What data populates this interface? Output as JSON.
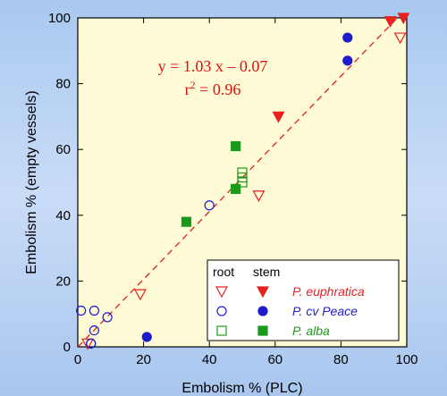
{
  "chart_data": {
    "type": "scatter",
    "xlabel": "Embolism % (PLC)",
    "ylabel": "Embolism % (empty vessels)",
    "xlim": [
      0,
      100
    ],
    "ylim": [
      0,
      100
    ],
    "x_ticks": [
      "0",
      "20",
      "40",
      "60",
      "80",
      "100"
    ],
    "y_ticks": [
      "0",
      "20",
      "40",
      "60",
      "80",
      "100"
    ],
    "grid": false,
    "background_color": "#fefbd6",
    "regression": {
      "equation": "y = 1.03 x – 0.07",
      "r2_prefix": "r",
      "r2_sup": "2",
      "r2_value": " = 0.96",
      "slope": 1.03,
      "intercept": -0.07,
      "color": "#e02020",
      "style": "dashed"
    },
    "legend": {
      "placement": "bottom-right",
      "headers": [
        "root",
        "stem"
      ]
    },
    "series": [
      {
        "name": "P. euphratica",
        "color": "#e82020",
        "marker": "triangle-down",
        "root": [
          [
            3,
            1
          ],
          [
            19,
            16
          ],
          [
            55,
            46
          ],
          [
            98,
            94
          ]
        ],
        "stem": [
          [
            61,
            70
          ],
          [
            95,
            99
          ],
          [
            99,
            100
          ]
        ]
      },
      {
        "name": "P. cv Peace",
        "color": "#1c1ccc",
        "marker": "circle",
        "root": [
          [
            1,
            11
          ],
          [
            4,
            1
          ],
          [
            4,
            1
          ],
          [
            5,
            5
          ],
          [
            5,
            11
          ],
          [
            9,
            9
          ],
          [
            40,
            43
          ]
        ],
        "stem": [
          [
            21,
            3
          ],
          [
            82,
            87
          ],
          [
            82,
            94
          ]
        ]
      },
      {
        "name": "P. alba",
        "color": "#1a9a1a",
        "marker": "square",
        "root": [
          [
            50,
            50
          ],
          [
            50,
            51.5
          ],
          [
            50,
            53
          ]
        ],
        "stem": [
          [
            33,
            38
          ],
          [
            48,
            48
          ],
          [
            48,
            61
          ]
        ]
      }
    ]
  }
}
